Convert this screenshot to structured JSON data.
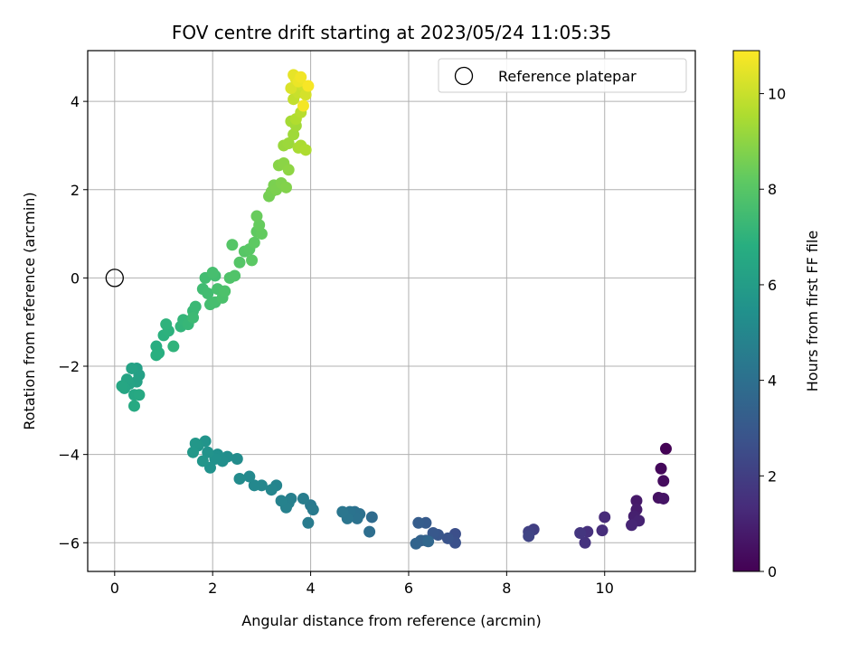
{
  "chart_data": {
    "type": "scatter",
    "title": "FOV centre drift starting at 2023/05/24 11:05:35",
    "xlabel": "Angular distance from reference (arcmin)",
    "ylabel": "Rotation from reference (arcmin)",
    "xlim": [
      -0.55,
      11.85
    ],
    "ylim": [
      -6.65,
      5.15
    ],
    "xticks": [
      0,
      2,
      4,
      6,
      8,
      10
    ],
    "yticks": [
      -6,
      -4,
      -2,
      0,
      2,
      4
    ],
    "grid": true,
    "legend": {
      "position": "top-right",
      "entries": [
        "Reference platepar"
      ]
    },
    "reference_point": {
      "x": 0,
      "y": 0
    },
    "colorbar": {
      "label": "Hours from first FF file",
      "colormap": "viridis",
      "range": [
        0,
        10.9
      ],
      "ticks": [
        0,
        2,
        4,
        6,
        8,
        10
      ]
    },
    "series": [
      {
        "points": [
          [
            11.25,
            -3.87,
            0.05
          ],
          [
            11.15,
            -4.32,
            0.2
          ],
          [
            11.2,
            -4.6,
            0.35
          ],
          [
            11.1,
            -4.98,
            0.5
          ],
          [
            11.2,
            -5.0,
            0.6
          ],
          [
            10.65,
            -5.05,
            0.75
          ],
          [
            10.65,
            -5.25,
            0.85
          ],
          [
            10.6,
            -5.4,
            0.95
          ],
          [
            10.7,
            -5.5,
            1.05
          ],
          [
            10.55,
            -5.6,
            1.15
          ],
          [
            10.0,
            -5.42,
            1.3
          ],
          [
            9.95,
            -5.72,
            1.4
          ],
          [
            9.65,
            -5.75,
            1.5
          ],
          [
            9.6,
            -6.0,
            1.6
          ],
          [
            9.5,
            -5.78,
            1.7
          ],
          [
            8.55,
            -5.7,
            2.0
          ],
          [
            8.45,
            -5.75,
            2.1
          ],
          [
            8.45,
            -5.85,
            2.2
          ],
          [
            6.95,
            -5.8,
            2.6
          ],
          [
            6.95,
            -6.0,
            2.7
          ],
          [
            6.8,
            -5.9,
            2.8
          ],
          [
            6.6,
            -5.82,
            2.9
          ],
          [
            6.5,
            -5.78,
            3.0
          ],
          [
            6.35,
            -5.55,
            3.1
          ],
          [
            6.2,
            -5.55,
            3.2
          ],
          [
            6.35,
            -5.95,
            3.3
          ],
          [
            6.25,
            -5.95,
            3.4
          ],
          [
            6.15,
            -6.02,
            3.5
          ],
          [
            6.4,
            -5.97,
            3.6
          ],
          [
            5.25,
            -5.42,
            3.8
          ],
          [
            5.2,
            -5.75,
            3.9
          ],
          [
            5.0,
            -5.35,
            4.0
          ],
          [
            4.9,
            -5.3,
            4.05
          ],
          [
            4.95,
            -5.45,
            4.1
          ],
          [
            4.8,
            -5.3,
            4.15
          ],
          [
            4.75,
            -5.45,
            4.2
          ],
          [
            4.65,
            -5.3,
            4.25
          ],
          [
            4.0,
            -5.15,
            4.4
          ],
          [
            4.05,
            -5.25,
            4.45
          ],
          [
            3.95,
            -5.55,
            4.5
          ],
          [
            3.85,
            -5.0,
            4.55
          ],
          [
            3.6,
            -5.0,
            4.65
          ],
          [
            3.55,
            -5.1,
            4.7
          ],
          [
            3.5,
            -5.2,
            4.75
          ],
          [
            3.4,
            -5.05,
            4.8
          ],
          [
            3.3,
            -4.7,
            4.9
          ],
          [
            3.2,
            -4.8,
            4.95
          ],
          [
            3.0,
            -4.7,
            5.0
          ],
          [
            2.85,
            -4.7,
            5.05
          ],
          [
            2.75,
            -4.5,
            5.1
          ],
          [
            2.55,
            -4.55,
            5.2
          ],
          [
            2.5,
            -4.1,
            5.25
          ],
          [
            2.3,
            -4.05,
            5.3
          ],
          [
            2.2,
            -4.15,
            5.35
          ],
          [
            2.1,
            -4.0,
            5.4
          ],
          [
            2.05,
            -4.1,
            5.45
          ],
          [
            1.95,
            -4.3,
            5.5
          ],
          [
            1.9,
            -3.95,
            5.55
          ],
          [
            1.85,
            -3.7,
            5.6
          ],
          [
            1.8,
            -4.15,
            5.65
          ],
          [
            1.7,
            -3.8,
            5.7
          ],
          [
            1.65,
            -3.75,
            5.75
          ],
          [
            1.6,
            -3.95,
            5.8
          ],
          [
            0.45,
            -2.05,
            6.1
          ],
          [
            0.5,
            -2.2,
            6.15
          ],
          [
            0.45,
            -2.35,
            6.2
          ],
          [
            0.35,
            -2.05,
            6.25
          ],
          [
            0.3,
            -2.4,
            6.3
          ],
          [
            0.25,
            -2.3,
            6.35
          ],
          [
            0.2,
            -2.5,
            6.4
          ],
          [
            0.15,
            -2.45,
            6.45
          ],
          [
            0.4,
            -2.65,
            6.5
          ],
          [
            0.5,
            -2.65,
            6.55
          ],
          [
            0.4,
            -2.9,
            6.6
          ],
          [
            0.85,
            -1.55,
            6.75
          ],
          [
            0.9,
            -1.7,
            6.8
          ],
          [
            0.85,
            -1.75,
            6.85
          ],
          [
            1.0,
            -1.3,
            6.9
          ],
          [
            1.1,
            -1.2,
            6.95
          ],
          [
            1.05,
            -1.05,
            7.0
          ],
          [
            1.2,
            -1.55,
            7.05
          ],
          [
            1.35,
            -1.1,
            7.1
          ],
          [
            1.4,
            -0.95,
            7.15
          ],
          [
            1.5,
            -1.05,
            7.2
          ],
          [
            1.6,
            -0.75,
            7.25
          ],
          [
            1.65,
            -0.65,
            7.3
          ],
          [
            1.6,
            -0.9,
            7.35
          ],
          [
            1.8,
            -0.25,
            7.45
          ],
          [
            1.9,
            -0.35,
            7.5
          ],
          [
            1.95,
            -0.6,
            7.55
          ],
          [
            2.05,
            -0.55,
            7.6
          ],
          [
            2.1,
            -0.25,
            7.65
          ],
          [
            2.2,
            -0.45,
            7.7
          ],
          [
            2.25,
            -0.3,
            7.75
          ],
          [
            2.35,
            0.0,
            7.8
          ],
          [
            1.85,
            0.0,
            7.5
          ],
          [
            2.05,
            0.05,
            7.55
          ],
          [
            2.0,
            0.12,
            7.6
          ],
          [
            2.45,
            0.05,
            7.85
          ],
          [
            2.55,
            0.35,
            7.95
          ],
          [
            2.65,
            0.6,
            8.0
          ],
          [
            2.75,
            0.65,
            8.05
          ],
          [
            2.8,
            0.4,
            8.1
          ],
          [
            2.4,
            0.75,
            7.95
          ],
          [
            2.85,
            0.8,
            8.15
          ],
          [
            2.9,
            1.05,
            8.2
          ],
          [
            3.0,
            1.0,
            8.25
          ],
          [
            2.95,
            1.2,
            8.3
          ],
          [
            2.9,
            1.4,
            8.35
          ],
          [
            3.15,
            1.85,
            8.55
          ],
          [
            3.2,
            1.95,
            8.6
          ],
          [
            3.25,
            2.1,
            8.65
          ],
          [
            3.3,
            2.0,
            8.7
          ],
          [
            3.4,
            2.15,
            8.75
          ],
          [
            3.5,
            2.05,
            8.8
          ],
          [
            3.35,
            2.55,
            8.9
          ],
          [
            3.45,
            2.6,
            8.95
          ],
          [
            3.55,
            2.45,
            9.0
          ],
          [
            3.45,
            3.0,
            9.2
          ],
          [
            3.55,
            3.05,
            9.25
          ],
          [
            3.65,
            3.25,
            9.3
          ],
          [
            3.7,
            3.45,
            9.35
          ],
          [
            3.6,
            3.55,
            9.4
          ],
          [
            3.75,
            2.95,
            9.45
          ],
          [
            3.8,
            3.0,
            9.5
          ],
          [
            3.9,
            2.9,
            9.55
          ],
          [
            3.7,
            3.6,
            9.6
          ],
          [
            3.8,
            3.75,
            9.7
          ],
          [
            3.65,
            4.05,
            9.9
          ],
          [
            3.75,
            4.2,
            10.0
          ],
          [
            3.85,
            4.35,
            10.1
          ],
          [
            3.9,
            4.15,
            10.2
          ],
          [
            3.6,
            4.3,
            10.3
          ],
          [
            3.7,
            4.5,
            10.4
          ],
          [
            3.65,
            4.6,
            10.5
          ],
          [
            3.75,
            4.45,
            10.6
          ],
          [
            3.8,
            4.55,
            10.7
          ],
          [
            3.95,
            4.35,
            10.8
          ],
          [
            3.85,
            3.9,
            10.75
          ]
        ]
      }
    ]
  }
}
